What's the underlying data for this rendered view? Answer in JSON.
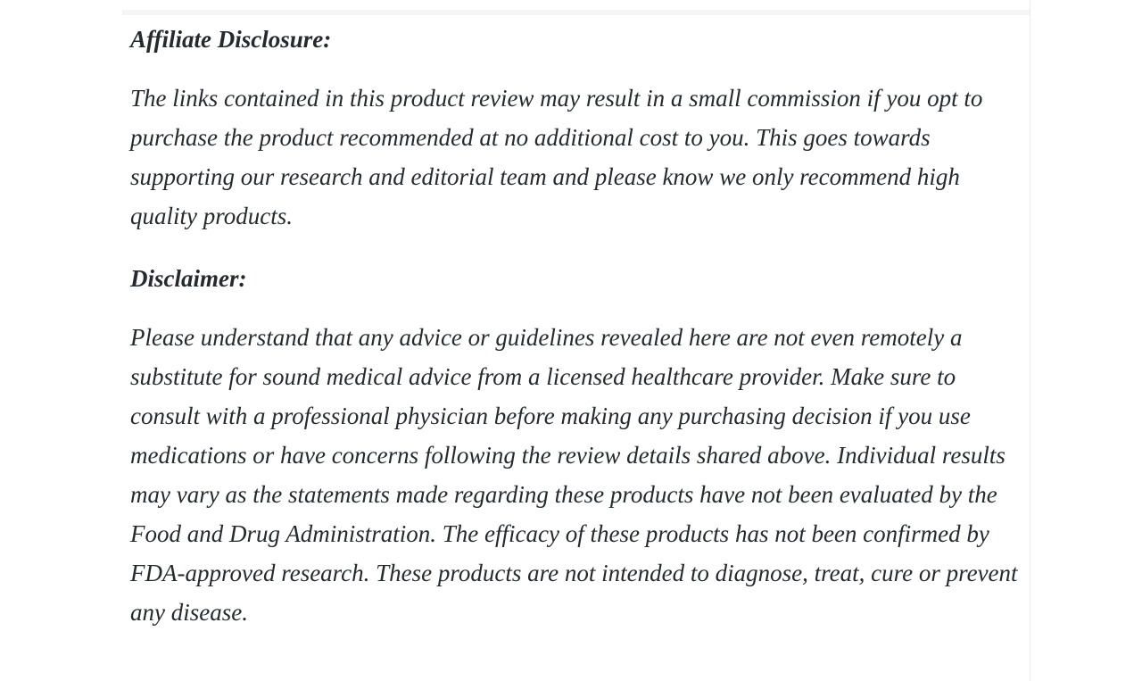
{
  "page": {
    "background": "#ffffff",
    "text_color": "#262a2f",
    "divider_color": "#f5f5f6",
    "rule_color": "#ededed"
  },
  "article": {
    "sections": [
      {
        "heading": "Affiliate Disclosure:",
        "paragraph": "The links contained in this product review may result in a small commission if you opt to purchase the product recommended at no additional cost to you. This goes towards supporting our research and editorial team and please know we only recommend high quality products."
      },
      {
        "heading": "Disclaimer:",
        "paragraph": "Please understand that any advice or guidelines revealed here are not even remotely a substitute for sound medical advice from a licensed healthcare provider. Make sure to consult with a professional physician before making any purchasing decision if you use medications or have concerns following the review details shared above. Individual results may vary as the statements made regarding these products have not been evaluated by the Food and Drug Administration. The efficacy of these products has not been confirmed by FDA-approved research. These products are not intended to diagnose, treat, cure or prevent any disease."
      }
    ]
  }
}
